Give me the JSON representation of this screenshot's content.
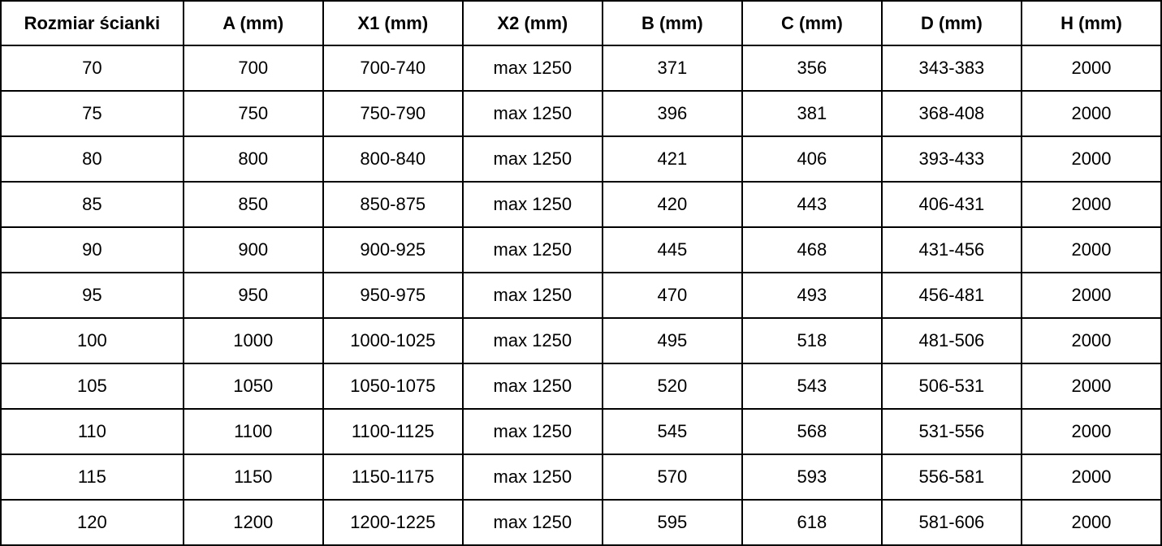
{
  "table": {
    "headers": [
      "Rozmiar ścianki",
      "A (mm)",
      "X1 (mm)",
      "X2 (mm)",
      "B (mm)",
      "C (mm)",
      "D (mm)",
      "H (mm)"
    ],
    "rows": [
      [
        "70",
        "700",
        "700-740",
        "max 1250",
        "371",
        "356",
        "343-383",
        "2000"
      ],
      [
        "75",
        "750",
        "750-790",
        "max 1250",
        "396",
        "381",
        "368-408",
        "2000"
      ],
      [
        "80",
        "800",
        "800-840",
        "max 1250",
        "421",
        "406",
        "393-433",
        "2000"
      ],
      [
        "85",
        "850",
        "850-875",
        "max 1250",
        "420",
        "443",
        "406-431",
        "2000"
      ],
      [
        "90",
        "900",
        "900-925",
        "max 1250",
        "445",
        "468",
        "431-456",
        "2000"
      ],
      [
        "95",
        "950",
        "950-975",
        "max 1250",
        "470",
        "493",
        "456-481",
        "2000"
      ],
      [
        "100",
        "1000",
        "1000-1025",
        "max 1250",
        "495",
        "518",
        "481-506",
        "2000"
      ],
      [
        "105",
        "1050",
        "1050-1075",
        "max 1250",
        "520",
        "543",
        "506-531",
        "2000"
      ],
      [
        "110",
        "1100",
        "1100-1125",
        "max 1250",
        "545",
        "568",
        "531-556",
        "2000"
      ],
      [
        "115",
        "1150",
        "1150-1175",
        "max 1250",
        "570",
        "593",
        "556-581",
        "2000"
      ],
      [
        "120",
        "1200",
        "1200-1225",
        "max 1250",
        "595",
        "618",
        "581-606",
        "2000"
      ]
    ],
    "colors": {
      "border": "#000000",
      "text": "#000000",
      "background": "#ffffff"
    }
  }
}
